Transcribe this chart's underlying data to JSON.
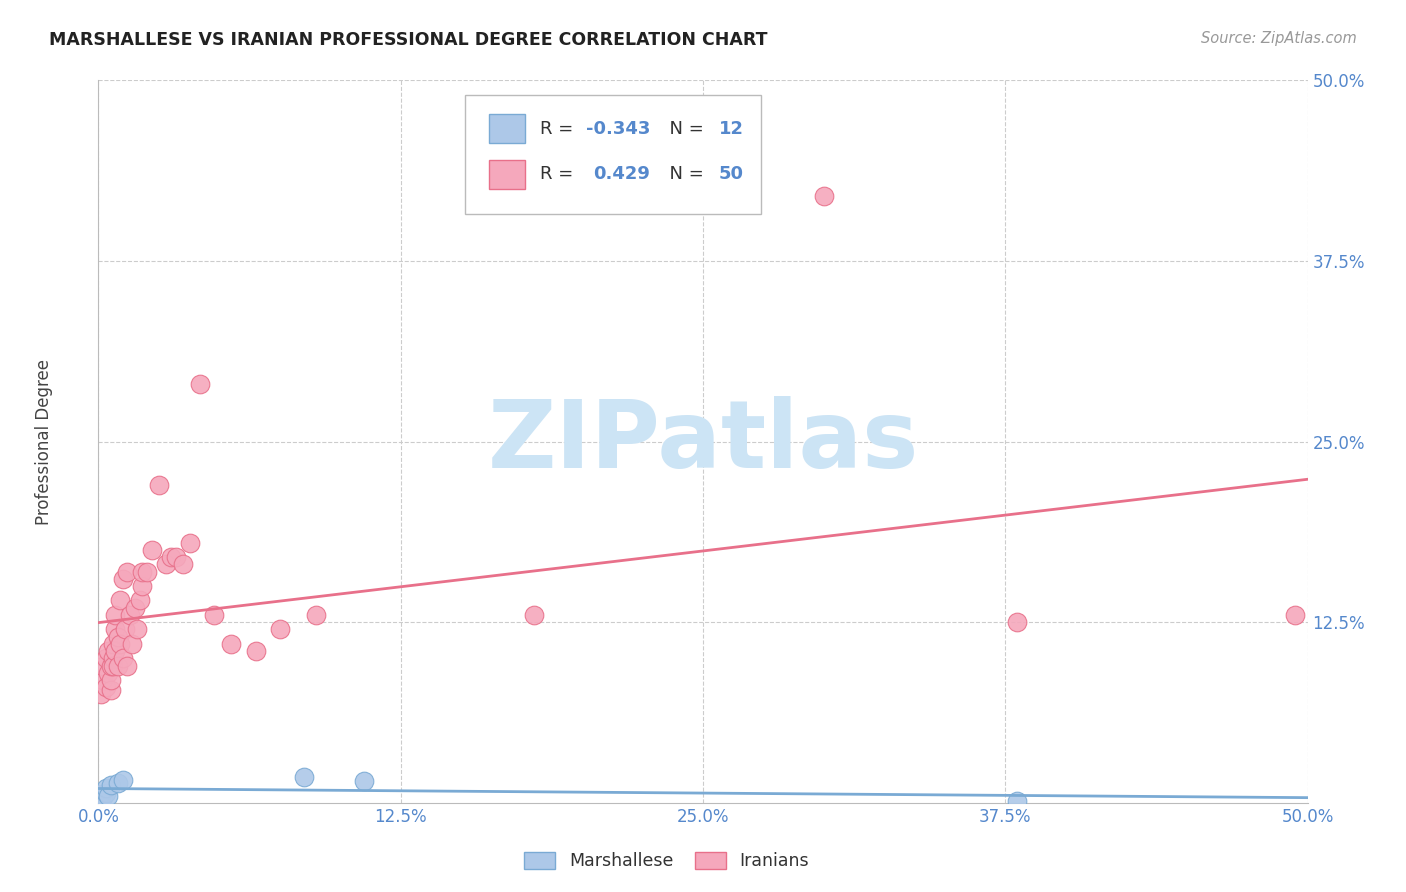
{
  "title": "MARSHALLESE VS IRANIAN PROFESSIONAL DEGREE CORRELATION CHART",
  "source": "Source: ZipAtlas.com",
  "ylabel": "Professional Degree",
  "xlim": [
    0.0,
    0.5
  ],
  "ylim": [
    0.0,
    0.5
  ],
  "xtick_vals": [
    0.0,
    0.125,
    0.25,
    0.375,
    0.5
  ],
  "ytick_vals": [
    0.125,
    0.25,
    0.375,
    0.5
  ],
  "marshallese_color": "#adc8e8",
  "iranian_color": "#f5a8bc",
  "marshallese_line_color": "#7aaad4",
  "iranian_line_color": "#e8708a",
  "R_marshallese": -0.343,
  "N_marshallese": 12,
  "R_iranian": 0.429,
  "N_iranian": 50,
  "watermark": "ZIPatlas",
  "watermark_color": "#cce4f5",
  "background_color": "#ffffff",
  "grid_color": "#cccccc",
  "text_color": "#5588cc",
  "label_color": "#444444",
  "marshallese_x": [
    0.001,
    0.001,
    0.002,
    0.003,
    0.003,
    0.004,
    0.005,
    0.008,
    0.01,
    0.085,
    0.11,
    0.38
  ],
  "marshallese_y": [
    0.003,
    0.006,
    0.004,
    0.007,
    0.01,
    0.005,
    0.012,
    0.014,
    0.016,
    0.018,
    0.015,
    0.001
  ],
  "iranian_x": [
    0.001,
    0.002,
    0.002,
    0.003,
    0.003,
    0.004,
    0.004,
    0.005,
    0.005,
    0.005,
    0.006,
    0.006,
    0.006,
    0.007,
    0.007,
    0.007,
    0.008,
    0.008,
    0.009,
    0.009,
    0.01,
    0.01,
    0.011,
    0.012,
    0.012,
    0.013,
    0.014,
    0.015,
    0.016,
    0.017,
    0.018,
    0.018,
    0.02,
    0.022,
    0.025,
    0.028,
    0.03,
    0.032,
    0.035,
    0.038,
    0.042,
    0.048,
    0.055,
    0.065,
    0.075,
    0.09,
    0.18,
    0.3,
    0.38,
    0.495
  ],
  "iranian_y": [
    0.075,
    0.085,
    0.095,
    0.08,
    0.1,
    0.09,
    0.105,
    0.078,
    0.085,
    0.095,
    0.1,
    0.11,
    0.095,
    0.105,
    0.12,
    0.13,
    0.095,
    0.115,
    0.11,
    0.14,
    0.1,
    0.155,
    0.12,
    0.095,
    0.16,
    0.13,
    0.11,
    0.135,
    0.12,
    0.14,
    0.15,
    0.16,
    0.16,
    0.175,
    0.22,
    0.165,
    0.17,
    0.17,
    0.165,
    0.18,
    0.29,
    0.13,
    0.11,
    0.105,
    0.12,
    0.13,
    0.13,
    0.42,
    0.125,
    0.13
  ]
}
